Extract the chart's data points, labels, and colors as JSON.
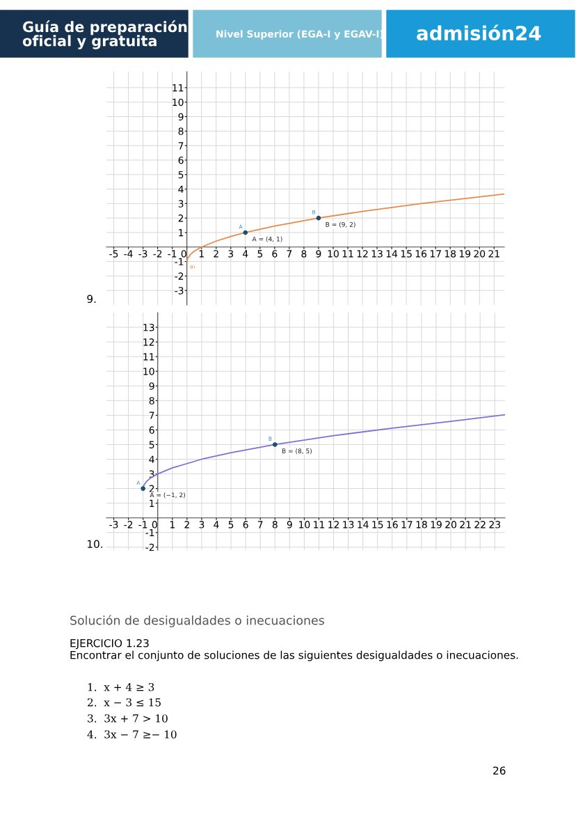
{
  "chart_data": [
    {
      "type": "other",
      "annotations": [
        "Guía de preparación\noficial y gratuita",
        "Nivel Superior (EGA-I y EGAV-I)",
        "admisión24",
        "Solución de desigualdades o inecuaciones",
        "EJERCICIO 1.23",
        "Encontrar el conjunto de soluciones de las siguientes desigualdades o inecuaciones.",
        "1.  x + 4 ≥ 3",
        "2.  x − 3 ≤ 15",
        "3.  3x + 7 > 10",
        "4.  3x − 7 ≥− 10",
        "26"
      ]
    },
    {
      "type": "line",
      "title": "9.",
      "xlim": [
        -5.5,
        21.7
      ],
      "ylim": [
        -4.0,
        12.1
      ],
      "xticks": [
        -5,
        -4,
        -3,
        -2,
        -1,
        0,
        1,
        2,
        3,
        4,
        5,
        6,
        7,
        8,
        9,
        10,
        11,
        12,
        13,
        14,
        15,
        16,
        17,
        18,
        19,
        20,
        21
      ],
      "yticks": [
        -3,
        -2,
        -1,
        1,
        2,
        3,
        4,
        5,
        6,
        7,
        8,
        9,
        10,
        11
      ],
      "grid": true,
      "series": [
        {
          "name": "a₁",
          "color": "#e8894a",
          "x": [
            0,
            0.05,
            0.25,
            0.5,
            1,
            2,
            3,
            4,
            6,
            9,
            12,
            16,
            21.7
          ],
          "values": [
            -1,
            -0.78,
            -0.5,
            -0.29,
            0,
            0.41,
            0.73,
            1,
            1.45,
            2,
            2.46,
            3,
            3.66
          ]
        },
        {
          "type": "scatter",
          "name": "A",
          "color": "#1d4e6e",
          "x": [
            4
          ],
          "values": [
            1
          ]
        },
        {
          "type": "scatter",
          "name": "B",
          "color": "#1d4e6e",
          "x": [
            9
          ],
          "values": [
            2
          ]
        }
      ],
      "annotations": [
        {
          "text": "A = (4, 1)",
          "x": 4,
          "y": 1
        },
        {
          "text": "B = (9, 2)",
          "x": 9,
          "y": 2
        }
      ]
    },
    {
      "type": "line",
      "title": "10.",
      "xlim": [
        -3.5,
        23.7
      ],
      "ylim": [
        -2.2,
        14.0
      ],
      "xticks": [
        -3,
        -2,
        -1,
        0,
        1,
        2,
        3,
        4,
        5,
        6,
        7,
        8,
        9,
        10,
        11,
        12,
        13,
        14,
        15,
        16,
        17,
        18,
        19,
        20,
        21,
        22,
        23
      ],
      "yticks": [
        -2,
        -1,
        1,
        2,
        3,
        4,
        5,
        6,
        7,
        8,
        9,
        10,
        11,
        12,
        13
      ],
      "grid": true,
      "series": [
        {
          "color": "#7b72d8",
          "x": [
            -1,
            -0.95,
            -0.75,
            -0.5,
            0,
            1,
            3,
            5,
            8,
            12,
            16,
            20,
            23.7
          ],
          "values": [
            2,
            2.22,
            2.5,
            2.71,
            3,
            3.41,
            4,
            4.45,
            5,
            5.61,
            6.12,
            6.58,
            7.03
          ]
        },
        {
          "type": "scatter",
          "name": "A",
          "color": "#1d4e6e",
          "x": [
            -1
          ],
          "values": [
            2
          ]
        },
        {
          "type": "scatter",
          "name": "B",
          "color": "#1d4e6e",
          "x": [
            8
          ],
          "values": [
            5
          ]
        }
      ],
      "annotations": [
        {
          "text": "A = (−1, 2)",
          "x": -1,
          "y": 2
        },
        {
          "text": "B = (8, 5)",
          "x": 8,
          "y": 5
        }
      ]
    }
  ]
}
